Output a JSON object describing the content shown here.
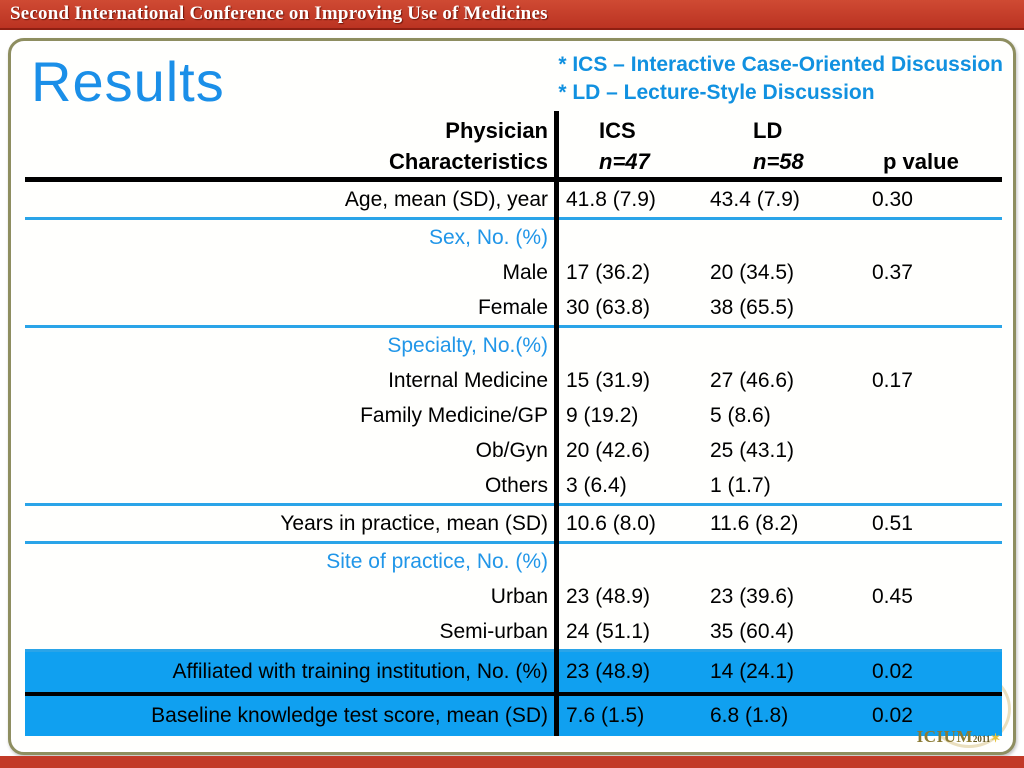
{
  "banner": {
    "text": "Second International Conference on Improving Use of Medicines"
  },
  "slide": {
    "title": "Results",
    "legend": {
      "line1": "* ICS – Interactive Case-Oriented Discussion",
      "line2": "* LD – Lecture-Style Discussion"
    },
    "logo": {
      "text": "ICIUM",
      "year": "2011"
    }
  },
  "colors": {
    "banner_red": "#c23a28",
    "slide_border_olive": "#8e8e60",
    "title_blue": "#1b8fe8",
    "section_blue": "#2196e8",
    "divider_blue": "#2aa4e8",
    "highlight_blue": "#10a0f0"
  },
  "chart_data": {
    "type": "table",
    "title": "Results",
    "header": {
      "label_line1": "Physician",
      "label_line2": "Characteristics",
      "ics_line1": "ICS",
      "ics_line2": "n=47",
      "ld_line1": "LD",
      "ld_line2": "n=58",
      "p": "p value"
    },
    "rows": [
      {
        "type": "data",
        "label": "Age, mean (SD), year",
        "ics": "41.8 (7.9)",
        "ld": "43.4 (7.9)",
        "p": "0.30",
        "divider": "blue"
      },
      {
        "type": "section",
        "label": "Sex, No. (%)",
        "ics": "",
        "ld": "",
        "p": "",
        "divider": ""
      },
      {
        "type": "data",
        "label": "Male",
        "ics": "17 (36.2)",
        "ld": "20 (34.5)",
        "p": "0.37",
        "divider": ""
      },
      {
        "type": "data",
        "label": "Female",
        "ics": "30 (63.8)",
        "ld": "38 (65.5)",
        "p": "",
        "divider": "blue"
      },
      {
        "type": "section",
        "label": "Specialty, No.(%)",
        "ics": "",
        "ld": "",
        "p": "",
        "divider": ""
      },
      {
        "type": "data",
        "label": "Internal Medicine",
        "ics": "15 (31.9)",
        "ld": "27 (46.6)",
        "p": "0.17",
        "divider": ""
      },
      {
        "type": "data",
        "label": "Family Medicine/GP",
        "ics": "9 (19.2)",
        "ld": "5 (8.6)",
        "p": "",
        "divider": ""
      },
      {
        "type": "data",
        "label": "Ob/Gyn",
        "ics": "20 (42.6)",
        "ld": "25 (43.1)",
        "p": "",
        "divider": ""
      },
      {
        "type": "data",
        "label": "Others",
        "ics": "3 (6.4)",
        "ld": "1 (1.7)",
        "p": "",
        "divider": "blue"
      },
      {
        "type": "data",
        "label": "Years in practice, mean (SD)",
        "ics": "10.6 (8.0)",
        "ld": "11.6 (8.2)",
        "p": "0.51",
        "divider": "blue"
      },
      {
        "type": "section",
        "label": "Site of practice, No. (%)",
        "ics": "",
        "ld": "",
        "p": "",
        "divider": ""
      },
      {
        "type": "data",
        "label": "Urban",
        "ics": "23 (48.9)",
        "ld": "23 (39.6)",
        "p": "0.45",
        "divider": ""
      },
      {
        "type": "data",
        "label": "Semi-urban",
        "ics": "24 (51.1)",
        "ld": "35 (60.4)",
        "p": "",
        "divider": "blue"
      },
      {
        "type": "highlight",
        "label": "Affiliated with training institution, No. (%)",
        "ics": "23 (48.9)",
        "ld": "14 (24.1)",
        "p": "0.02",
        "divider": "black"
      },
      {
        "type": "highlight",
        "label": "Baseline knowledge test score, mean (SD)",
        "ics": "7.6 (1.5)",
        "ld": "6.8 (1.8)",
        "p": "0.02",
        "divider": ""
      }
    ]
  }
}
